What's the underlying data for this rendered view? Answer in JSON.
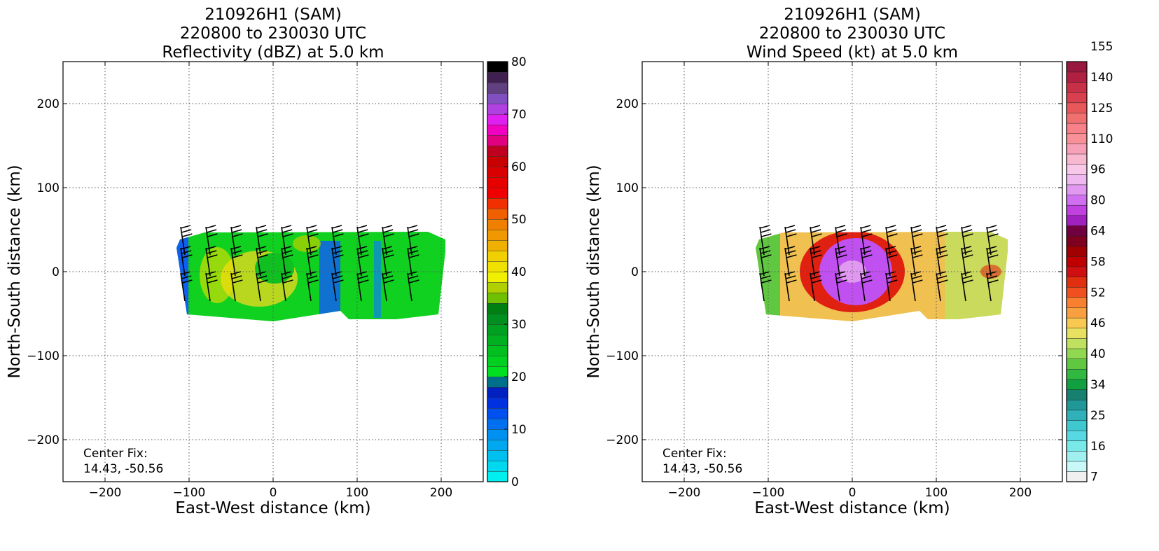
{
  "chart_data": [
    {
      "type": "heatmap",
      "title_lines": [
        "210926H1 (SAM)",
        "220800 to 230030 UTC",
        "Reflectivity (dBZ) at 5.0 km"
      ],
      "xlabel": "East-West distance (km)",
      "ylabel": "North-South distance (km)",
      "xlim": [
        -250,
        250
      ],
      "ylim": [
        -250,
        250
      ],
      "xticks": [
        -200,
        -100,
        0,
        100,
        200
      ],
      "yticks": [
        200,
        100,
        0,
        -100,
        -200
      ],
      "grid": true,
      "annotation": [
        "Center Fix:",
        "14.43, -50.56"
      ],
      "center_fix": {
        "lat": 14.43,
        "lon": -50.56
      },
      "colorbar": {
        "min": 0,
        "max": 80,
        "tick_labels": [
          "0",
          "10",
          "20",
          "30",
          "40",
          "50",
          "60",
          "70",
          "80"
        ],
        "tick_values": [
          0,
          10,
          20,
          30,
          40,
          50,
          60,
          70,
          80
        ],
        "colors": [
          "#00f0f0",
          "#00d8f0",
          "#00c0f0",
          "#00a8f0",
          "#0090f0",
          "#0070f0",
          "#0050f0",
          "#0030e0",
          "#0020c0",
          "#00708a",
          "#00e020",
          "#00d020",
          "#00c020",
          "#00b020",
          "#00a020",
          "#009020",
          "#008010",
          "#70c000",
          "#b0d000",
          "#f0f000",
          "#f0e000",
          "#f0d000",
          "#f0b000",
          "#f09800",
          "#f08000",
          "#f06000",
          "#f03000",
          "#f00000",
          "#e80000",
          "#d80000",
          "#c80000",
          "#c00020",
          "#e00080",
          "#f000c0",
          "#e020f0",
          "#b040e0",
          "#8050c0",
          "#604080",
          "#402050",
          "#000000"
        ]
      },
      "field": {
        "extent_x": [
          -115,
          205
        ],
        "extent_y": [
          -55,
          45
        ],
        "regions": [
          {
            "kind": "base",
            "color": "#10d020"
          },
          {
            "kind": "blue-edge",
            "color": "#1060f0"
          },
          {
            "kind": "yellow-band",
            "color": "#d8d820"
          }
        ]
      }
    },
    {
      "type": "heatmap",
      "title_lines": [
        "210926H1 (SAM)",
        "220800 to 230030 UTC",
        "Wind Speed (kt) at 5.0 km"
      ],
      "xlabel": "East-West distance (km)",
      "ylabel": "North-South distance (km)",
      "xlim": [
        -250,
        250
      ],
      "ylim": [
        -250,
        250
      ],
      "xticks": [
        -200,
        -100,
        0,
        100,
        200
      ],
      "yticks": [
        200,
        100,
        0,
        -100,
        -200
      ],
      "grid": true,
      "annotation": [
        "Center Fix:",
        "14.43, -50.56"
      ],
      "center_fix": {
        "lat": 14.43,
        "lon": -50.56
      },
      "colorbar": {
        "tick_labels": [
          "7",
          "16",
          "25",
          "34",
          "40",
          "46",
          "52",
          "58",
          "64",
          "80",
          "96",
          "110",
          "125",
          "140",
          "155"
        ],
        "colors": [
          "#f0f0f0",
          "#c8f8f8",
          "#a0f0f0",
          "#78e8e8",
          "#58d8e0",
          "#40c8d0",
          "#30b0b8",
          "#209898",
          "#188070",
          "#10a040",
          "#30b840",
          "#60c840",
          "#90d850",
          "#c0e060",
          "#e8e060",
          "#f8c850",
          "#f8a040",
          "#f88030",
          "#f05020",
          "#e03010",
          "#d01010",
          "#c00000",
          "#a00000",
          "#800020",
          "#700040",
          "#a020c0",
          "#c040e0",
          "#d070f0",
          "#e098f0",
          "#f0b8f0",
          "#f8c8e8",
          "#f8b8d0",
          "#f8a0b8",
          "#f89098",
          "#f88088",
          "#f07070",
          "#e85858",
          "#d84050",
          "#c83048",
          "#b02040",
          "#981840"
        ]
      },
      "field": {
        "extent_x": [
          -115,
          185
        ],
        "extent_y": [
          -55,
          45
        ],
        "regions": [
          {
            "kind": "base",
            "color": "#f0c050"
          },
          {
            "kind": "red-ring",
            "color": "#e02010"
          },
          {
            "kind": "purple-core",
            "color": "#c050f0"
          }
        ]
      }
    }
  ]
}
